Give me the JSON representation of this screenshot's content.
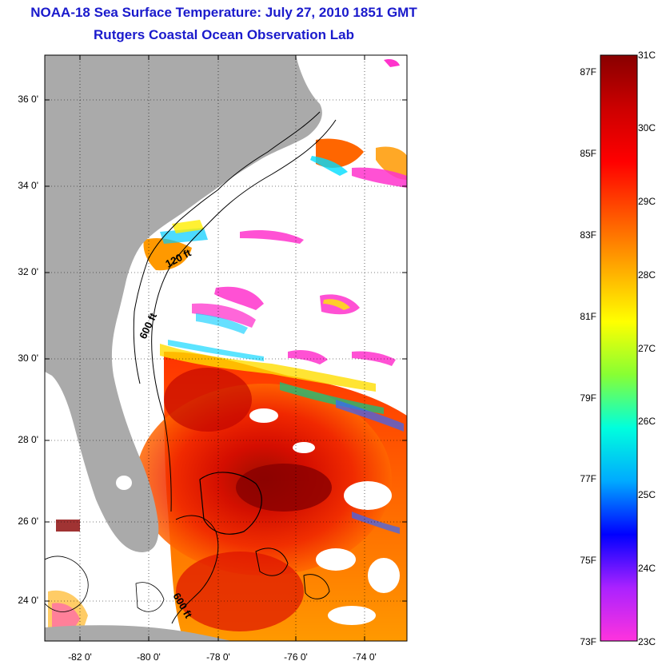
{
  "title_line1": "NOAA-18 Sea Surface Temperature:  July 27, 2010 1851 GMT",
  "title_line2": "Rutgers Coastal Ocean Observation Lab",
  "map": {
    "lat_labels": [
      "36 0'",
      "34 0'",
      "32 0'",
      "30 0'",
      "28 0'",
      "26 0'",
      "24 0'"
    ],
    "lon_labels": [
      "-82 0'",
      "-80 0'",
      "-78 0'",
      "-76 0'",
      "-74 0'"
    ],
    "contour_labels": [
      "120 ft",
      "600 ft",
      "600 ft"
    ],
    "colors": {
      "land": "#aaaaaa",
      "cloud": "#ffffff",
      "frame": "#000000",
      "title": "#1a1acc"
    }
  },
  "colorbar": {
    "celsius_labels": [
      "31C",
      "30C",
      "29C",
      "28C",
      "27C",
      "26C",
      "25C",
      "24C",
      "23C"
    ],
    "fahrenheit_labels": [
      "87F",
      "85F",
      "83F",
      "81F",
      "79F",
      "77F",
      "75F",
      "73F"
    ],
    "colors": [
      "#ff33dd",
      "#aa22ff",
      "#0000ff",
      "#00aaff",
      "#00ffdd",
      "#88ff33",
      "#ffff00",
      "#ffaa00",
      "#ff5500",
      "#ff0000",
      "#cc0000",
      "#880000"
    ]
  }
}
